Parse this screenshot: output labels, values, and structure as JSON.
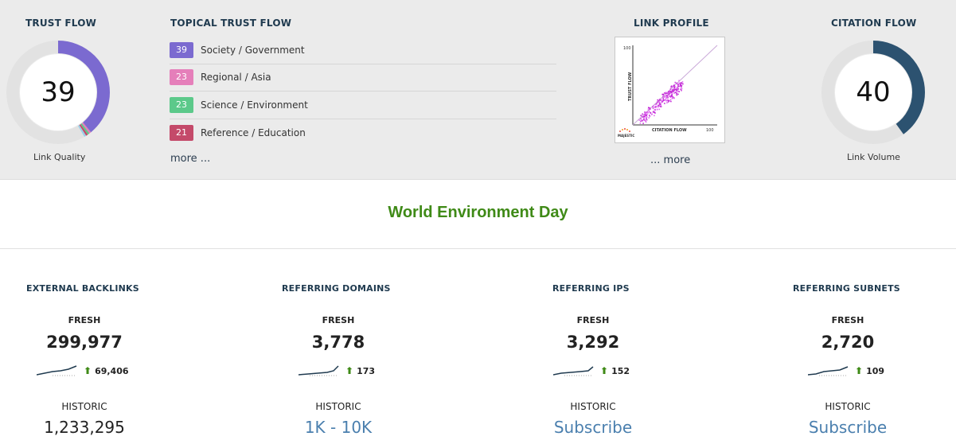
{
  "trust_flow": {
    "heading": "TRUST FLOW",
    "value": "39",
    "label": "Link Quality",
    "fraction": 0.39
  },
  "topical_trust_flow": {
    "heading": "TOPICAL TRUST FLOW",
    "items": [
      {
        "score": "39",
        "topic": "Society / Government",
        "color": "#7b6ad0"
      },
      {
        "score": "23",
        "topic": "Regional / Asia",
        "color": "#e57fba"
      },
      {
        "score": "23",
        "topic": "Science / Environment",
        "color": "#5cc98a"
      },
      {
        "score": "21",
        "topic": "Reference / Education",
        "color": "#c44a6a"
      }
    ],
    "more": "more ..."
  },
  "link_profile": {
    "heading": "LINK PROFILE",
    "y_axis": "TRUST FLOW",
    "x_axis": "CITATION FLOW",
    "y_max": "100",
    "x_max": "100",
    "brand": "MAJESTIC",
    "more": "... more"
  },
  "citation_flow": {
    "heading": "CITATION FLOW",
    "value": "40",
    "label": "Link Volume",
    "fraction": 0.4
  },
  "page_title": "World Environment Day",
  "colors": {
    "trust_ring": "#7b6ad0",
    "citation_ring": "#2c5270",
    "title_green": "#3f8a17",
    "link_blue": "#4a7fae"
  },
  "stats": [
    {
      "heading": "EXTERNAL BACKLINKS",
      "fresh_label": "FRESH",
      "fresh_value": "299,977",
      "trend": "69,406",
      "historic_label": "HISTORIC",
      "historic_value": "1,233,295",
      "historic_is_link": false
    },
    {
      "heading": "REFERRING DOMAINS",
      "fresh_label": "FRESH",
      "fresh_value": "3,778",
      "trend": "173",
      "historic_label": "HISTORIC",
      "historic_value": "1K - 10K",
      "historic_is_link": true
    },
    {
      "heading": "REFERRING IPS",
      "fresh_label": "FRESH",
      "fresh_value": "3,292",
      "trend": "152",
      "historic_label": "HISTORIC",
      "historic_value": "Subscribe",
      "historic_is_link": true
    },
    {
      "heading": "REFERRING SUBNETS",
      "fresh_label": "FRESH",
      "fresh_value": "2,720",
      "trend": "109",
      "historic_label": "HISTORIC",
      "historic_value": "Subscribe",
      "historic_is_link": true
    }
  ]
}
